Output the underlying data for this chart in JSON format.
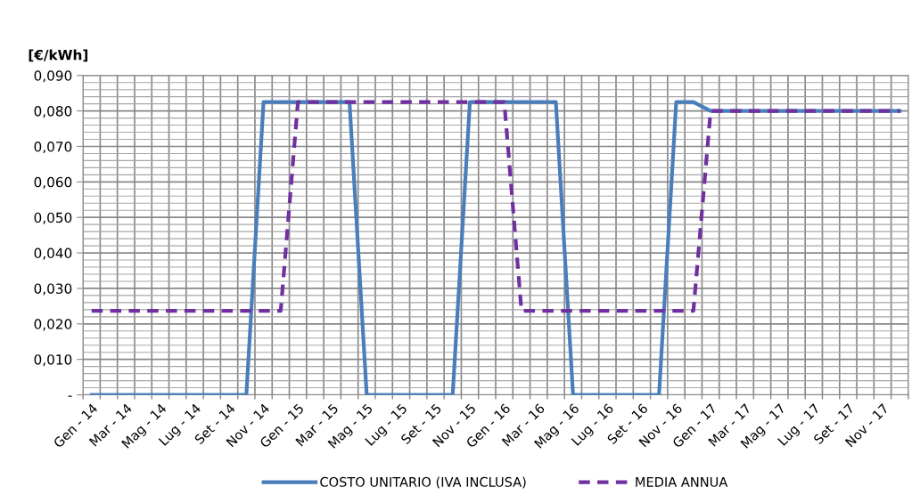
{
  "chart_data": {
    "type": "line",
    "ylabel": "[€/kWh]",
    "categories": [
      "Gen - 14",
      null,
      "Mar - 14",
      null,
      "Mag - 14",
      null,
      "Lug - 14",
      null,
      "Set - 14",
      null,
      "Nov - 14",
      null,
      "Gen - 15",
      null,
      "Mar - 15",
      null,
      "Mag - 15",
      null,
      "Lug - 15",
      null,
      "Set - 15",
      null,
      "Nov - 15",
      null,
      "Gen - 16",
      null,
      "Mar - 16",
      null,
      "Mag - 16",
      null,
      "Lug - 16",
      null,
      "Set - 16",
      null,
      "Nov - 16",
      null,
      "Gen - 17",
      null,
      "Mar - 17",
      null,
      "Mag - 17",
      null,
      "Lug - 17",
      null,
      "Set - 17",
      null,
      "Nov - 17",
      null
    ],
    "series": [
      {
        "name": "COSTO UNITARIO (IVA INCLUSA)",
        "color": "#4a7ebb",
        "line_style": "solid",
        "values": [
          0,
          0,
          0,
          0,
          0,
          0,
          0,
          0,
          0,
          0,
          0.0825,
          0.0825,
          0.0825,
          0.0825,
          0.0825,
          0.0825,
          0,
          0,
          0,
          0,
          0,
          0,
          0.0825,
          0.0825,
          0.0825,
          0.0825,
          0.0825,
          0.0825,
          0,
          0,
          0,
          0,
          0,
          0,
          0.0825,
          0.0825,
          0.08,
          0.08,
          0.08,
          0.08,
          0.08,
          0.08,
          0.08,
          0.08,
          0.08,
          0.08,
          0.08,
          0.08
        ]
      },
      {
        "name": "MEDIA ANNUA",
        "color": "#7030a0",
        "line_style": "dashed",
        "values": [
          0.0237,
          0.0237,
          0.0237,
          0.0237,
          0.0237,
          0.0237,
          0.0237,
          0.0237,
          0.0237,
          0.0237,
          0.0237,
          0.0237,
          0.0825,
          0.0825,
          0.0825,
          0.0825,
          0.0825,
          0.0825,
          0.0825,
          0.0825,
          0.0825,
          0.0825,
          0.0825,
          0.0825,
          0.0825,
          0.0237,
          0.0237,
          0.0237,
          0.0237,
          0.0237,
          0.0237,
          0.0237,
          0.0237,
          0.0237,
          0.0237,
          0.0237,
          0.08,
          0.08,
          0.08,
          0.08,
          0.08,
          0.08,
          0.08,
          0.08,
          0.08,
          0.08,
          0.08,
          0.08
        ]
      }
    ],
    "ylim": [
      0,
      0.09
    ],
    "yticks": [
      {
        "value": 0,
        "label": "-"
      },
      {
        "value": 0.01,
        "label": "0,010"
      },
      {
        "value": 0.02,
        "label": "0,020"
      },
      {
        "value": 0.03,
        "label": "0,030"
      },
      {
        "value": 0.04,
        "label": "0,040"
      },
      {
        "value": 0.05,
        "label": "0,050"
      },
      {
        "value": 0.06,
        "label": "0,060"
      },
      {
        "value": 0.07,
        "label": "0,070"
      },
      {
        "value": 0.08,
        "label": "0,080"
      },
      {
        "value": 0.09,
        "label": "0,090"
      }
    ],
    "grid": true,
    "legend": "bottom"
  }
}
